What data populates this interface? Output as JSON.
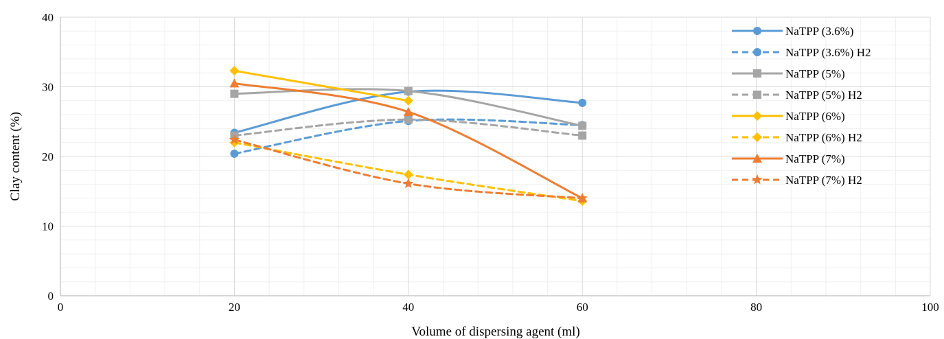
{
  "chart_data": {
    "type": "line",
    "title": "",
    "xlabel": "Volume of dispersing agent (ml)",
    "ylabel": "Clay content (%)",
    "xlim": [
      0,
      100
    ],
    "ylim": [
      0,
      40
    ],
    "x_ticks": [
      0,
      20,
      40,
      60,
      80,
      100
    ],
    "y_ticks": [
      0,
      10,
      20,
      30,
      40
    ],
    "grid": true,
    "legend_position": "right",
    "x": [
      20,
      40,
      60
    ],
    "series": [
      {
        "name": "NaTPP (3.6%)",
        "values": [
          23.4,
          29.3,
          27.7
        ],
        "color": "#5b9bd5",
        "dashed": false,
        "marker": "circle"
      },
      {
        "name": "NaTPP (3.6%) H2",
        "values": [
          20.4,
          25.1,
          24.5
        ],
        "color": "#5b9bd5",
        "dashed": true,
        "marker": "circle"
      },
      {
        "name": "NaTPP (5%)",
        "values": [
          29.0,
          29.4,
          24.4
        ],
        "color": "#a5a5a5",
        "dashed": false,
        "marker": "square"
      },
      {
        "name": "NaTPP (5%) H2",
        "values": [
          23.0,
          25.3,
          23.0
        ],
        "color": "#a5a5a5",
        "dashed": true,
        "marker": "square"
      },
      {
        "name": "NaTPP (6%)",
        "values": [
          32.3,
          28.0,
          null
        ],
        "color": "#ffc000",
        "dashed": false,
        "marker": "diamond"
      },
      {
        "name": "NaTPP (6%) H2",
        "values": [
          22.0,
          17.4,
          13.6
        ],
        "color": "#ffc000",
        "dashed": true,
        "marker": "diamond"
      },
      {
        "name": "NaTPP (7%)",
        "values": [
          30.5,
          26.4,
          14.0
        ],
        "color": "#ed7d31",
        "dashed": false,
        "marker": "triangle"
      },
      {
        "name": "NaTPP (7%) H2",
        "values": [
          22.4,
          16.1,
          14.0
        ],
        "color": "#ed7d31",
        "dashed": true,
        "marker": "star"
      }
    ]
  }
}
